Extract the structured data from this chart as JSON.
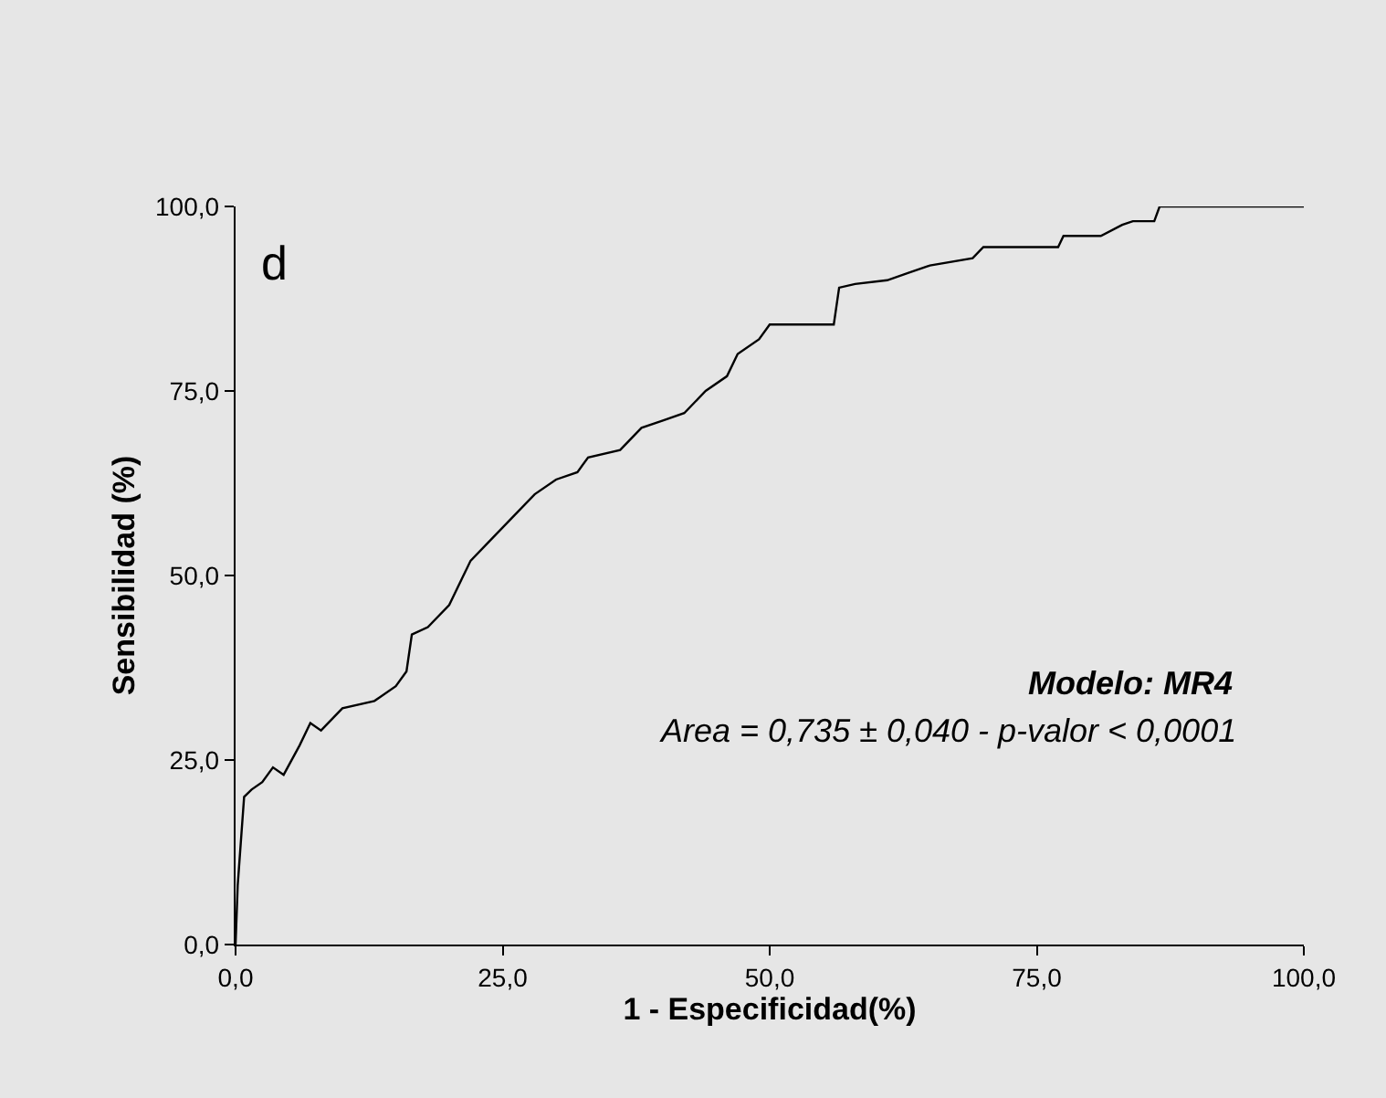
{
  "chart_data": {
    "type": "line",
    "xlabel": "1 - Especificidad(%)",
    "ylabel": "Sensibilidad (%)",
    "annotations": [
      "d",
      "Modelo: MR4",
      "Area = 0,735 ± 0,040 - p-valor < 0,0001"
    ],
    "xlim": [
      0,
      100
    ],
    "ylim": [
      0,
      100
    ],
    "xticks": [
      {
        "value": 0,
        "label": "0,0"
      },
      {
        "value": 25,
        "label": "25,0"
      },
      {
        "value": 50,
        "label": "50,0"
      },
      {
        "value": 75,
        "label": "75,0"
      },
      {
        "value": 100,
        "label": "100,0"
      }
    ],
    "yticks": [
      {
        "value": 0,
        "label": "0,0"
      },
      {
        "value": 25,
        "label": "25,0"
      },
      {
        "value": 50,
        "label": "50,0"
      },
      {
        "value": 75,
        "label": "75,0"
      },
      {
        "value": 100,
        "label": "100,0"
      }
    ],
    "marker": "none",
    "line_style": "solid",
    "series": [
      {
        "color": "#000000",
        "x": [
          0,
          0.2,
          0.8,
          1.5,
          2.5,
          3.5,
          4.5,
          6,
          7,
          8,
          10,
          13,
          15,
          16,
          16.5,
          18,
          20,
          22,
          24,
          26,
          28,
          30,
          32,
          33,
          36,
          38,
          40,
          42,
          44,
          46,
          47,
          49,
          50,
          56,
          56.5,
          58,
          61,
          63,
          65,
          69,
          70,
          77,
          77.5,
          81,
          83,
          84,
          86,
          86.5,
          100
        ],
        "values": [
          0,
          8,
          20,
          21,
          22,
          24,
          23,
          27,
          30,
          29,
          32,
          33,
          35,
          37,
          42,
          43,
          46,
          52,
          55,
          58,
          61,
          63,
          64,
          66,
          67,
          70,
          71,
          72,
          75,
          77,
          80,
          82,
          84,
          84,
          89,
          89.5,
          90,
          91,
          92,
          93,
          94.5,
          94.5,
          96,
          96,
          97.5,
          98,
          98,
          100,
          100
        ]
      }
    ]
  }
}
